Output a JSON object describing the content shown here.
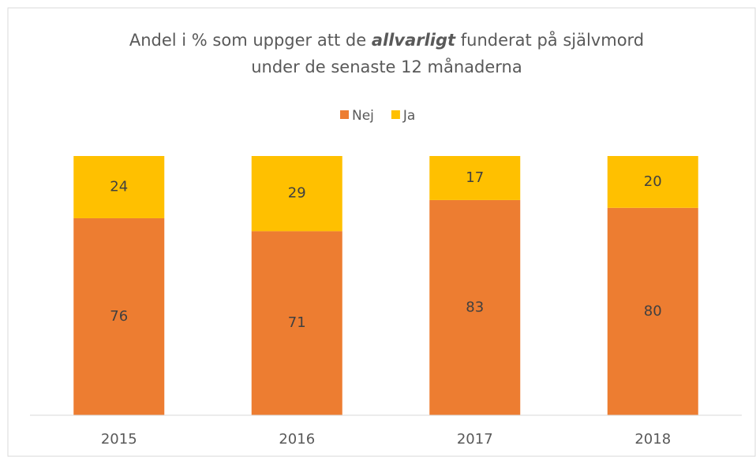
{
  "chart_data": {
    "type": "stacked_bar",
    "title": [
      "Andel i % som uppger att de",
      "allvarligt",
      "funderat på självmord",
      "under de senaste 12 månaderna"
    ],
    "categories": [
      "2015",
      "2016",
      "2017",
      "2018"
    ],
    "series": [
      {
        "name": "Nej",
        "color": "#ED7D31",
        "values": [
          76,
          71,
          83,
          80
        ]
      },
      {
        "name": "Ja",
        "color": "#FFC000",
        "values": [
          24,
          29,
          17,
          20
        ]
      }
    ],
    "ylim": [
      0,
      100
    ],
    "legend": "top"
  }
}
